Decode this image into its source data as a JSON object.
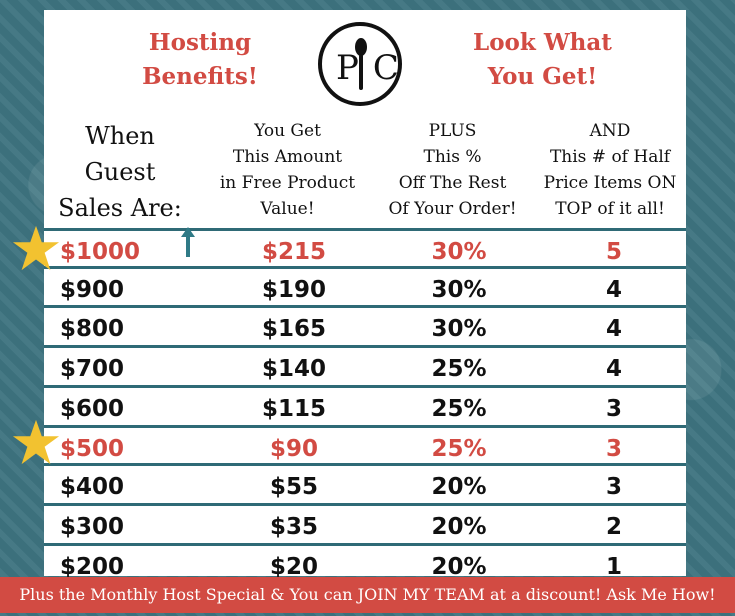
{
  "header": {
    "left_title_line1": "Hosting",
    "left_title_line2": "Benefits!",
    "right_title_line1": "Look What",
    "right_title_line2": "You Get!",
    "logo_text": "PC"
  },
  "columns": {
    "col1": [
      "When",
      "Guest",
      "Sales Are:"
    ],
    "col2": [
      "You Get",
      "This Amount",
      "in Free Product",
      "Value!"
    ],
    "col3": [
      "PLUS",
      "This %",
      "Off The Rest",
      "Of Your Order!"
    ],
    "col4": [
      "AND",
      "This # of Half",
      "Price Items ON",
      "TOP of it all!"
    ]
  },
  "rows": [
    {
      "sales": "$1000",
      "free": "$215",
      "pct": "30%",
      "half": "5",
      "highlight": true
    },
    {
      "sales": "$900",
      "free": "$190",
      "pct": "30%",
      "half": "4",
      "highlight": false
    },
    {
      "sales": "$800",
      "free": "$165",
      "pct": "30%",
      "half": "4",
      "highlight": false
    },
    {
      "sales": "$700",
      "free": "$140",
      "pct": "25%",
      "half": "4",
      "highlight": false
    },
    {
      "sales": "$600",
      "free": "$115",
      "pct": "25%",
      "half": "3",
      "highlight": false
    },
    {
      "sales": "$500",
      "free": "$90",
      "pct": "25%",
      "half": "3",
      "highlight": true
    },
    {
      "sales": "$400",
      "free": "$55",
      "pct": "20%",
      "half": "3",
      "highlight": false
    },
    {
      "sales": "$300",
      "free": "$35",
      "pct": "20%",
      "half": "2",
      "highlight": false
    },
    {
      "sales": "$200",
      "free": "$20",
      "pct": "20%",
      "half": "1",
      "highlight": false
    }
  ],
  "footer": {
    "text": "Plus the Monthly Host Special & You can JOIN MY TEAM at a discount! Ask Me How!"
  },
  "colors": {
    "accent_red": "#d24b43",
    "teal": "#2f6a76",
    "star": "#f2c230"
  }
}
